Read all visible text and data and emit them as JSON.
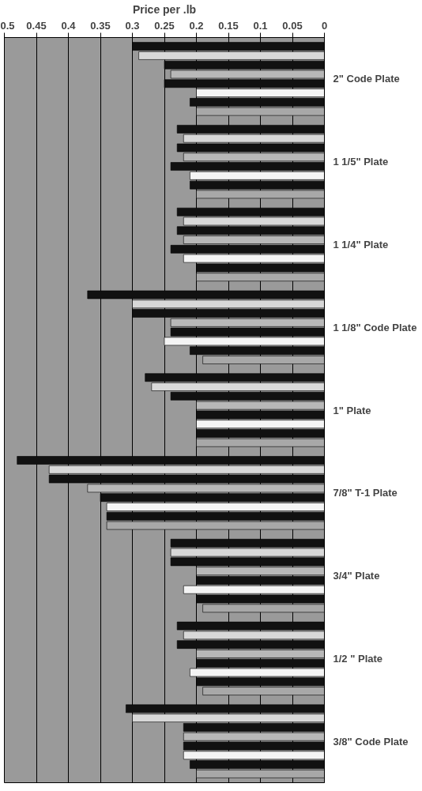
{
  "chart_data": {
    "type": "bar",
    "orientation": "horizontal",
    "xlabel": "Price per .lb",
    "categories": [
      "2\" Code Plate",
      "1 1/5\" Plate",
      "1 1/4\" Plate",
      "1 1/8\" Code Plate",
      "1\" Plate",
      "7/8\" T-1 Plate",
      "3/4\" Plate",
      "1/2 \" Plate",
      "3/8\" Code Plate"
    ],
    "xlim": [
      0.5,
      0
    ],
    "xticks": [
      0.5,
      0.45,
      0.4,
      0.35,
      0.3,
      0.25,
      0.2,
      0.15,
      0.1,
      0.05,
      0
    ],
    "grid": "x",
    "series": [
      {
        "color": "#111111",
        "values": [
          0.3,
          0.23,
          0.23,
          0.37,
          0.28,
          0.48,
          0.24,
          0.23,
          0.31
        ]
      },
      {
        "color": "#d8d8d8",
        "values": [
          0.29,
          0.22,
          0.22,
          0.3,
          0.27,
          0.43,
          0.24,
          0.22,
          0.3
        ]
      },
      {
        "color": "#111111",
        "values": [
          0.25,
          0.23,
          0.23,
          0.3,
          0.24,
          0.43,
          0.24,
          0.23,
          0.22
        ]
      },
      {
        "color": "#b8b8b8",
        "values": [
          0.24,
          0.22,
          0.22,
          0.24,
          0.2,
          0.37,
          0.2,
          0.2,
          0.22
        ]
      },
      {
        "color": "#111111",
        "values": [
          0.25,
          0.24,
          0.24,
          0.24,
          0.2,
          0.35,
          0.2,
          0.2,
          0.22
        ]
      },
      {
        "color": "#f4f4f4",
        "values": [
          0.2,
          0.21,
          0.22,
          0.25,
          0.2,
          0.34,
          0.22,
          0.21,
          0.22
        ]
      },
      {
        "color": "#111111",
        "values": [
          0.21,
          0.21,
          0.2,
          0.21,
          0.2,
          0.34,
          0.2,
          0.2,
          0.21
        ]
      },
      {
        "color": "#a8a8a8",
        "values": [
          0.2,
          0.2,
          0.2,
          0.19,
          0.2,
          0.34,
          0.19,
          0.19,
          0.2
        ]
      }
    ]
  }
}
